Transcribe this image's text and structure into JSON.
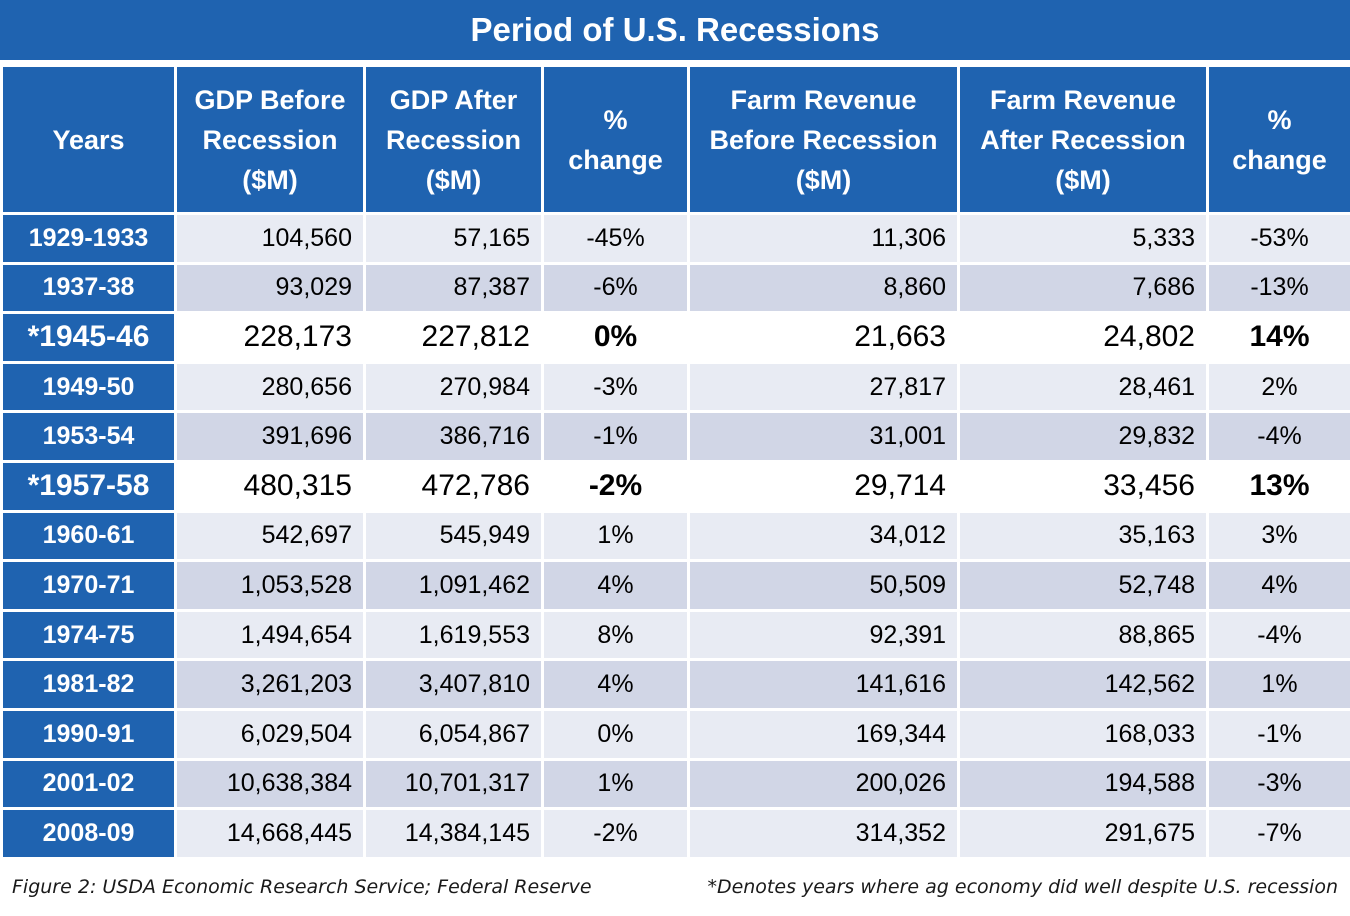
{
  "chart_data": {
    "type": "table",
    "title": "Period of U.S. Recessions",
    "columns": [
      "Years",
      "GDP Before Recession ($M)",
      "GDP After Recession ($M)",
      "% change",
      "Farm Revenue Before Recession ($M)",
      "Farm Revenue After Recession ($M)",
      "% change"
    ],
    "header_lines": [
      [
        "Years"
      ],
      [
        "GDP Before",
        "Recession",
        "($M)"
      ],
      [
        "GDP After",
        "Recession",
        "($M)"
      ],
      [
        "%",
        "change"
      ],
      [
        "Farm Revenue",
        "Before Recession",
        "($M)"
      ],
      [
        "Farm Revenue",
        "After Recession",
        "($M)"
      ],
      [
        "%",
        "change"
      ]
    ],
    "rows": [
      {
        "years": "1929-1933",
        "gdp_before": "104,560",
        "gdp_after": "57,165",
        "gdp_change": "-45%",
        "farm_before": "11,306",
        "farm_after": "5,333",
        "farm_change": "-53%",
        "highlight": false
      },
      {
        "years": "1937-38",
        "gdp_before": "93,029",
        "gdp_after": "87,387",
        "gdp_change": "-6%",
        "farm_before": "8,860",
        "farm_after": "7,686",
        "farm_change": "-13%",
        "highlight": false
      },
      {
        "years": "*1945-46",
        "gdp_before": "228,173",
        "gdp_after": "227,812",
        "gdp_change": "0%",
        "farm_before": "21,663",
        "farm_after": "24,802",
        "farm_change": "14%",
        "highlight": true
      },
      {
        "years": "1949-50",
        "gdp_before": "280,656",
        "gdp_after": "270,984",
        "gdp_change": "-3%",
        "farm_before": "27,817",
        "farm_after": "28,461",
        "farm_change": "2%",
        "highlight": false
      },
      {
        "years": "1953-54",
        "gdp_before": "391,696",
        "gdp_after": "386,716",
        "gdp_change": "-1%",
        "farm_before": "31,001",
        "farm_after": "29,832",
        "farm_change": "-4%",
        "highlight": false
      },
      {
        "years": "*1957-58",
        "gdp_before": "480,315",
        "gdp_after": "472,786",
        "gdp_change": "-2%",
        "farm_before": "29,714",
        "farm_after": "33,456",
        "farm_change": "13%",
        "highlight": true
      },
      {
        "years": "1960-61",
        "gdp_before": "542,697",
        "gdp_after": "545,949",
        "gdp_change": "1%",
        "farm_before": "34,012",
        "farm_after": "35,163",
        "farm_change": "3%",
        "highlight": false
      },
      {
        "years": "1970-71",
        "gdp_before": "1,053,528",
        "gdp_after": "1,091,462",
        "gdp_change": "4%",
        "farm_before": "50,509",
        "farm_after": "52,748",
        "farm_change": "4%",
        "highlight": false
      },
      {
        "years": "1974-75",
        "gdp_before": "1,494,654",
        "gdp_after": "1,619,553",
        "gdp_change": "8%",
        "farm_before": "92,391",
        "farm_after": "88,865",
        "farm_change": "-4%",
        "highlight": false
      },
      {
        "years": "1981-82",
        "gdp_before": "3,261,203",
        "gdp_after": "3,407,810",
        "gdp_change": "4%",
        "farm_before": "141,616",
        "farm_after": "142,562",
        "farm_change": "1%",
        "highlight": false
      },
      {
        "years": "1990-91",
        "gdp_before": "6,029,504",
        "gdp_after": "6,054,867",
        "gdp_change": "0%",
        "farm_before": "169,344",
        "farm_after": "168,033",
        "farm_change": "-1%",
        "highlight": false
      },
      {
        "years": "2001-02",
        "gdp_before": "10,638,384",
        "gdp_after": "10,701,317",
        "gdp_change": "1%",
        "farm_before": "200,026",
        "farm_after": "194,588",
        "farm_change": "-3%",
        "highlight": false
      },
      {
        "years": "2008-09",
        "gdp_before": "14,668,445",
        "gdp_after": "14,384,145",
        "gdp_change": "-2%",
        "farm_before": "314,352",
        "farm_after": "291,675",
        "farm_change": "-7%",
        "highlight": false
      }
    ]
  },
  "footer": {
    "source": "Figure 2: USDA Economic Research Service; Federal Reserve",
    "note": "*Denotes years where ag economy did well despite U.S. recession"
  },
  "colors": {
    "header_blue": "#1f63b0",
    "row_light": "#e8ebf3",
    "row_dark": "#d1d6e6",
    "highlight_row": "#ffffff"
  }
}
